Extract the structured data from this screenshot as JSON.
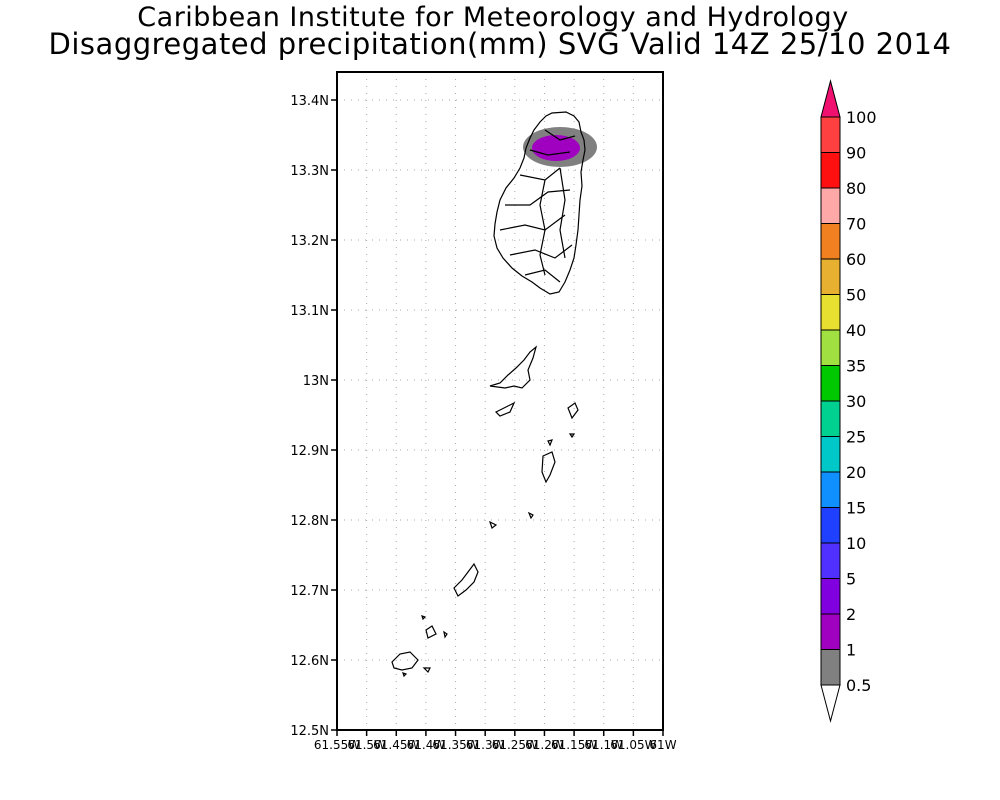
{
  "titles": {
    "line1": "Caribbean Institute for Meteorology and Hydrology",
    "line2": "Disaggregated precipitation(mm) SVG Valid 14Z 25/10 2014"
  },
  "axes": {
    "lat_ticks": [
      "13.4N",
      "13.3N",
      "13.2N",
      "13.1N",
      "13N",
      "12.9N",
      "12.8N",
      "12.7N",
      "12.6N",
      "12.5N"
    ],
    "lon_ticks": [
      "61.55W",
      "61.5W",
      "61.45W",
      "61.4W",
      "61.35W",
      "61.3W",
      "61.25W",
      "61.2W",
      "61.15W",
      "61.1W",
      "61.05W",
      "61W"
    ],
    "lat_range": [
      12.5,
      13.4
    ],
    "lon_range": [
      -61.55,
      -61.0
    ],
    "grid": true
  },
  "colorbar": {
    "levels": [
      "0.5",
      "1",
      "2",
      "5",
      "10",
      "15",
      "20",
      "25",
      "30",
      "35",
      "40",
      "50",
      "60",
      "70",
      "80",
      "90",
      "100"
    ],
    "colors": [
      "#808080",
      "#a000c0",
      "#8000e0",
      "#5030ff",
      "#2040ff",
      "#1090ff",
      "#00c8c8",
      "#00d090",
      "#00c800",
      "#a0e040",
      "#e8e030",
      "#e8b030",
      "#f08020",
      "#ffa8a8",
      "#ff1010",
      "#ff4040",
      "#f01070"
    ]
  },
  "precip_cells": [
    {
      "name": "north-saint-vincent",
      "level": "2",
      "lon": -61.19,
      "lat": 13.33
    }
  ]
}
